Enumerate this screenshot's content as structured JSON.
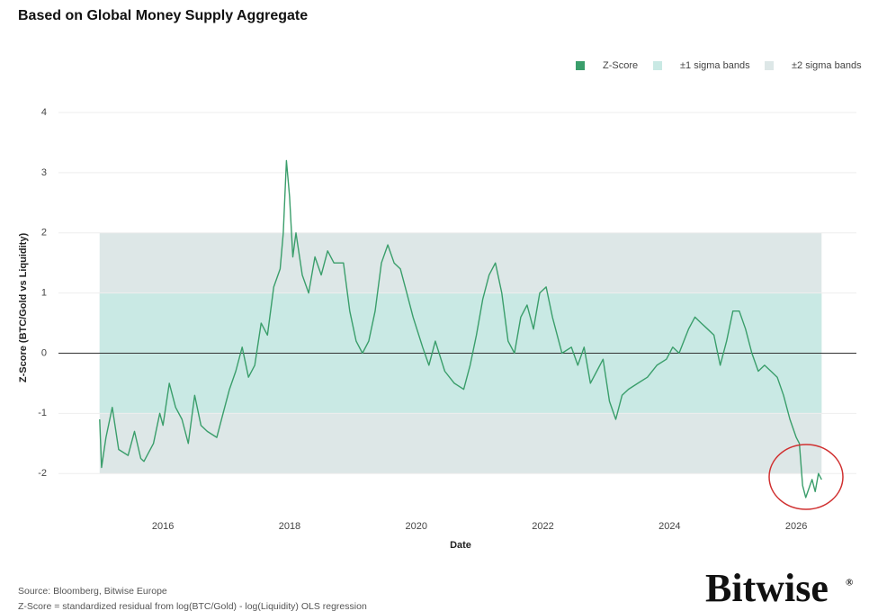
{
  "chart_data": {
    "type": "line",
    "title": "Based on Global Money Supply Aggregate",
    "xlabel": "Date",
    "ylabel": "Z-Score (BTC/Gold vs Liquidity)",
    "source": "Source: Bloomberg, Bitwise Europe",
    "footnote": "Z-Score = standardized residual from log(BTC/Gold) - log(Liquidity) OLS regression",
    "logo": "Bitwise",
    "logo_mark": "®",
    "xlim": [
      2014.35,
      2026.95
    ],
    "xticks": [
      2016,
      2018,
      2020,
      2022,
      2024,
      2026
    ],
    "ylim": [
      -2.7,
      4.3
    ],
    "yticks": [
      4,
      3,
      2,
      1,
      0,
      -1,
      -2
    ],
    "grid": true,
    "zero_line": 0,
    "legend": "top-right",
    "bands": [
      {
        "name": "±2 sigma bands",
        "color": "#dde7e7",
        "range": [
          -2,
          2
        ]
      },
      {
        "name": "±1 sigma bands",
        "color": "#c9e9e4",
        "range": [
          -1,
          1
        ]
      }
    ],
    "x": [
      2015.0,
      2015.03,
      2015.1,
      2015.2,
      2015.3,
      2015.45,
      2015.55,
      2015.65,
      2015.7,
      2015.85,
      2015.95,
      2016.0,
      2016.1,
      2016.2,
      2016.3,
      2016.4,
      2016.5,
      2016.6,
      2016.7,
      2016.85,
      2016.95,
      2017.05,
      2017.15,
      2017.25,
      2017.35,
      2017.45,
      2017.55,
      2017.65,
      2017.75,
      2017.85,
      2017.9,
      2017.95,
      2018.0,
      2018.05,
      2018.1,
      2018.2,
      2018.3,
      2018.4,
      2018.5,
      2018.6,
      2018.7,
      2018.85,
      2018.95,
      2019.05,
      2019.15,
      2019.25,
      2019.35,
      2019.45,
      2019.55,
      2019.65,
      2019.75,
      2019.85,
      2019.95,
      2020.1,
      2020.2,
      2020.3,
      2020.45,
      2020.6,
      2020.75,
      2020.85,
      2020.95,
      2021.05,
      2021.15,
      2021.25,
      2021.35,
      2021.45,
      2021.55,
      2021.65,
      2021.75,
      2021.85,
      2021.95,
      2022.05,
      2022.15,
      2022.3,
      2022.45,
      2022.55,
      2022.65,
      2022.75,
      2022.85,
      2022.95,
      2023.05,
      2023.15,
      2023.25,
      2023.35,
      2023.5,
      2023.65,
      2023.8,
      2023.95,
      2024.05,
      2024.15,
      2024.3,
      2024.4,
      2024.5,
      2024.6,
      2024.7,
      2024.8,
      2024.9,
      2025.0,
      2025.1,
      2025.2,
      2025.3,
      2025.4,
      2025.5,
      2025.6,
      2025.7,
      2025.8,
      2025.9,
      2026.0,
      2026.05,
      2026.1,
      2026.15,
      2026.25,
      2026.3,
      2026.35,
      2026.4
    ],
    "series": [
      {
        "name": "Z-Score",
        "color": "#3a9e6b",
        "values": [
          -1.1,
          -1.9,
          -1.4,
          -0.9,
          -1.6,
          -1.7,
          -1.3,
          -1.75,
          -1.8,
          -1.5,
          -1.0,
          -1.2,
          -0.5,
          -0.9,
          -1.1,
          -1.5,
          -0.7,
          -1.2,
          -1.3,
          -1.4,
          -1.0,
          -0.6,
          -0.3,
          0.1,
          -0.4,
          -0.2,
          0.5,
          0.3,
          1.1,
          1.4,
          2.0,
          3.2,
          2.6,
          1.6,
          2.0,
          1.3,
          1.0,
          1.6,
          1.3,
          1.7,
          1.5,
          1.5,
          0.7,
          0.2,
          0.0,
          0.2,
          0.7,
          1.5,
          1.8,
          1.5,
          1.4,
          1.0,
          0.6,
          0.1,
          -0.2,
          0.2,
          -0.3,
          -0.5,
          -0.6,
          -0.2,
          0.3,
          0.9,
          1.3,
          1.5,
          1.0,
          0.2,
          0.0,
          0.6,
          0.8,
          0.4,
          1.0,
          1.1,
          0.6,
          0.0,
          0.1,
          -0.2,
          0.1,
          -0.5,
          -0.3,
          -0.1,
          -0.8,
          -1.1,
          -0.7,
          -0.6,
          -0.5,
          -0.4,
          -0.2,
          -0.1,
          0.1,
          0.0,
          0.4,
          0.6,
          0.5,
          0.4,
          0.3,
          -0.2,
          0.2,
          0.7,
          0.7,
          0.4,
          0.0,
          -0.3,
          -0.2,
          -0.3,
          -0.4,
          -0.7,
          -1.1,
          -1.4,
          -1.5,
          -2.2,
          -2.4,
          -2.1,
          -2.3,
          -2.0,
          -2.1
        ]
      }
    ]
  }
}
